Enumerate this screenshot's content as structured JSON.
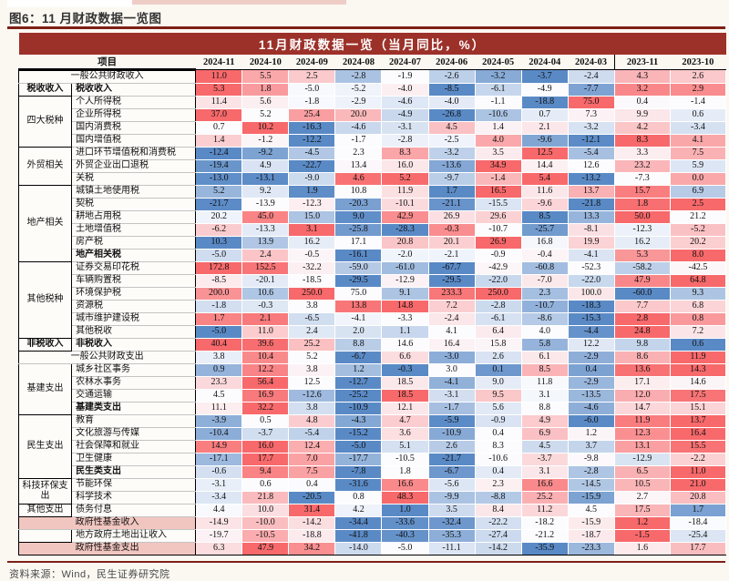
{
  "figure": {
    "title": "图6：11 月财政数据一览图"
  },
  "table": {
    "banner": "11月财政数据一览（当月同比，%）",
    "item_header": "项目"
  },
  "footer": {
    "source": "资料来源：Wind，民生证券研究院"
  },
  "colors": {
    "banner_bg": "#9C3129",
    "rule": "#7E2016",
    "pink_label_bg": "#F2C6C0",
    "scale_min": "#5A8AC6",
    "scale_mid": "#FCFCFF",
    "scale_max": "#F8696B"
  },
  "chart_data": {
    "type": "heatmap",
    "title": "11月财政数据一览（当月同比，%）",
    "legend_position": "none",
    "color_scale": {
      "min": "#5A8AC6",
      "mid": "#FCFCFF",
      "max": "#F8696B",
      "midpoint": "row-median"
    },
    "columns": [
      "2024-11",
      "2024-10",
      "2024-09",
      "2024-08",
      "2024-07",
      "2024-06",
      "2024-05",
      "2024-04",
      "2024-03",
      "2023-11",
      "2023-10"
    ],
    "rows": [
      {
        "m": 1,
        "l": "一般公共财政收入",
        "v": [
          11.0,
          5.5,
          2.5,
          -2.8,
          -1.9,
          -2.6,
          -3.2,
          -3.7,
          -2.4,
          4.3,
          2.6
        ]
      },
      {
        "sec": 1,
        "g": "税收收入",
        "gb": 1,
        "gs": 1,
        "l": "税收收入",
        "b": 1,
        "v": [
          5.3,
          1.8,
          -5.0,
          -5.2,
          -4.0,
          -8.5,
          -6.1,
          -4.9,
          -7.7,
          3.2,
          2.9
        ]
      },
      {
        "sec": 1,
        "g": "四大税种",
        "gs": 4,
        "l": "个人所得税",
        "v": [
          11.4,
          5.6,
          -1.8,
          -2.9,
          -4.6,
          -4.0,
          -1.1,
          -18.8,
          75.0,
          0.4,
          -1.4
        ]
      },
      {
        "l": "企业所得税",
        "v": [
          37.0,
          5.2,
          25.4,
          20.0,
          -4.9,
          -26.8,
          -10.6,
          0.7,
          7.3,
          9.9,
          0.6
        ]
      },
      {
        "l": "国内消费税",
        "v": [
          0.7,
          10.2,
          -16.3,
          -4.6,
          -3.1,
          4.5,
          1.4,
          2.1,
          -3.2,
          4.2,
          -3.4
        ]
      },
      {
        "l": "国内增值税",
        "v": [
          1.4,
          -1.2,
          -12.2,
          -1.7,
          -2.8,
          -2.5,
          4.0,
          -9.6,
          -12.1,
          8.3,
          4.1
        ]
      },
      {
        "sec": 1,
        "g": "外贸相关",
        "gs": 3,
        "l": "进口环节增值税和消费税",
        "v": [
          -12.4,
          -9.2,
          -4.5,
          2.3,
          8.3,
          -3.2,
          3.5,
          12.5,
          -5.4,
          3.3,
          7.5
        ]
      },
      {
        "l": "外贸企业出口退税",
        "v": [
          -19.4,
          4.9,
          -22.7,
          13.4,
          16.0,
          -13.6,
          34.9,
          14.4,
          12.6,
          23.2,
          5.9
        ]
      },
      {
        "l": "关税",
        "v": [
          -13.0,
          -13.1,
          -9.0,
          4.6,
          5.2,
          -9.7,
          -1.4,
          5.4,
          -13.2,
          -7.3,
          0.0
        ]
      },
      {
        "sec": 1,
        "g": "地产相关",
        "gs": 6,
        "l": "城镇土地使用税",
        "v": [
          5.2,
          9.2,
          1.9,
          10.8,
          11.9,
          1.7,
          16.5,
          11.6,
          13.7,
          15.7,
          6.9
        ]
      },
      {
        "l": "契税",
        "v": [
          -21.7,
          -13.9,
          -12.3,
          -20.3,
          -10.1,
          -21.1,
          -15.5,
          -9.6,
          -21.8,
          1.8,
          2.5
        ]
      },
      {
        "l": "耕地占用税",
        "v": [
          20.2,
          45.0,
          15.0,
          9.0,
          42.9,
          26.9,
          29.6,
          8.5,
          13.3,
          50.0,
          21.2
        ]
      },
      {
        "l": "土地增值税",
        "v": [
          -6.2,
          -13.3,
          3.1,
          -25.8,
          -28.3,
          -0.3,
          -10.7,
          -25.7,
          -8.1,
          -12.3,
          -5.2
        ]
      },
      {
        "l": "房产税",
        "v": [
          10.3,
          13.9,
          16.2,
          17.1,
          20.8,
          20.1,
          26.9,
          16.8,
          19.9,
          16.2,
          20.2
        ]
      },
      {
        "l": "地产相关税",
        "b": 1,
        "v": [
          -5.0,
          2.4,
          -0.5,
          -16.1,
          -2.0,
          -2.1,
          -0.9,
          -0.4,
          -4.1,
          5.3,
          8.0
        ]
      },
      {
        "sec": 1,
        "g": "其他税种",
        "gs": 6,
        "l": "证券交易印花税",
        "v": [
          172.8,
          152.5,
          -32.2,
          -59.0,
          -61.0,
          -67.7,
          -42.9,
          -60.8,
          -52.3,
          -58.2,
          -42.5
        ]
      },
      {
        "l": "车辆购置税",
        "v": [
          -8.5,
          -20.1,
          -18.5,
          -29.5,
          -12.9,
          -29.5,
          -22.0,
          -7.0,
          -22.0,
          47.9,
          64.8
        ]
      },
      {
        "l": "环境保护税",
        "v": [
          200.0,
          10.6,
          250.0,
          75.0,
          9.1,
          233.3,
          250.0,
          2.3,
          100.0,
          -60.0,
          9.3
        ]
      },
      {
        "l": "资源税",
        "v": [
          -1.8,
          -0.3,
          3.8,
          13.8,
          14.8,
          7.2,
          -2.8,
          -10.7,
          -18.3,
          7.7,
          6.8
        ]
      },
      {
        "l": "城市维护建设税",
        "v": [
          1.7,
          2.1,
          -6.5,
          -4.1,
          -3.3,
          -2.4,
          -6.1,
          -8.6,
          -15.3,
          2.8,
          0.8
        ]
      },
      {
        "l": "其他税收",
        "v": [
          -5.0,
          11.0,
          2.4,
          2.0,
          1.1,
          4.1,
          6.4,
          4.0,
          -4.4,
          24.8,
          7.2
        ]
      },
      {
        "sec": 1,
        "g": "非税收入",
        "gb": 1,
        "gs": 1,
        "l": "非税收入",
        "b": 1,
        "v": [
          40.4,
          39.6,
          25.2,
          8.8,
          14.6,
          16.4,
          15.8,
          5.8,
          12.2,
          9.8,
          0.6
        ]
      },
      {
        "sec": 1,
        "m": 1,
        "l": "一般公共财政支出",
        "v": [
          3.8,
          10.4,
          5.2,
          -6.7,
          6.6,
          -3.0,
          2.6,
          6.1,
          -2.9,
          8.6,
          11.9
        ]
      },
      {
        "sec": 1,
        "g": "基建支出",
        "gs": 4,
        "l": "城乡社区事务",
        "v": [
          0.9,
          12.2,
          3.8,
          1.2,
          -0.3,
          3.0,
          0.1,
          8.5,
          0.4,
          13.6,
          14.3
        ]
      },
      {
        "l": "农林水事务",
        "v": [
          23.3,
          56.4,
          12.5,
          -12.7,
          18.5,
          -4.1,
          9.0,
          11.8,
          -2.9,
          17.1,
          14.6
        ]
      },
      {
        "l": "交通运输",
        "v": [
          4.5,
          16.9,
          -12.6,
          -25.2,
          18.5,
          -3.1,
          9.5,
          3.1,
          -13.5,
          12.0,
          17.5
        ]
      },
      {
        "l": "基建类支出",
        "b": 1,
        "v": [
          11.1,
          32.2,
          3.8,
          -10.9,
          12.1,
          -1.7,
          5.6,
          8.8,
          -4.6,
          14.7,
          15.1
        ]
      },
      {
        "sec": 1,
        "g": "民生支出",
        "gs": 5,
        "l": "教育",
        "v": [
          -3.9,
          0.5,
          4.8,
          -4.3,
          4.7,
          -5.9,
          -0.9,
          4.9,
          -6.0,
          11.9,
          13.7
        ]
      },
      {
        "l": "文化旅游与传媒",
        "v": [
          -10.4,
          -3.7,
          -5.4,
          -15.2,
          3.6,
          -10.9,
          0.4,
          6.9,
          1.2,
          12.3,
          16.4
        ]
      },
      {
        "l": "社会保障和就业",
        "v": [
          14.9,
          16.0,
          12.4,
          -5.0,
          5.1,
          2.6,
          8.3,
          4.5,
          3.7,
          13.1,
          15.5
        ]
      },
      {
        "l": "卫生健康",
        "v": [
          -17.1,
          17.7,
          7.0,
          -17.7,
          -10.5,
          -21.7,
          -10.6,
          -3.7,
          -9.8,
          -12.9,
          -2.2
        ]
      },
      {
        "l": "民生类支出",
        "b": 1,
        "v": [
          -0.6,
          9.4,
          7.5,
          -7.8,
          1.8,
          -6.7,
          0.4,
          3.1,
          -2.8,
          6.5,
          11.0
        ]
      },
      {
        "sec": 1,
        "g": "科技环保支出",
        "gs": 2,
        "l": "节能环保",
        "v": [
          -3.1,
          0.6,
          0.4,
          -31.6,
          16.6,
          -5.6,
          2.3,
          16.6,
          -14.5,
          10.5,
          21.0
        ]
      },
      {
        "l": "科学技术",
        "v": [
          -3.4,
          21.8,
          -20.5,
          0.8,
          48.3,
          -9.9,
          -8.8,
          25.2,
          -15.9,
          2.7,
          20.8
        ]
      },
      {
        "sec": 1,
        "g": "其他支出",
        "gs": 1,
        "l": "债务付息",
        "v": [
          4.4,
          10.0,
          31.4,
          4.2,
          1.0,
          3.5,
          8.4,
          11.2,
          4.5,
          17.5,
          1.7
        ]
      },
      {
        "sec": 1,
        "m": 1,
        "hl": 1,
        "l": "政府性基金收入",
        "v": [
          -14.9,
          -10.0,
          -14.2,
          -34.4,
          -33.6,
          -32.4,
          -22.2,
          -18.2,
          -15.9,
          1.2,
          -18.4
        ]
      },
      {
        "sec": 1,
        "g": "",
        "gs": 1,
        "l": "地方政府土地出让收入",
        "v": [
          -19.7,
          -10.5,
          -18.8,
          -41.8,
          -40.3,
          -35.3,
          -27.4,
          -21.2,
          -18.7,
          -1.5,
          -25.4
        ]
      },
      {
        "sec": 1,
        "m": 1,
        "hl": 1,
        "l": "政府性基金支出",
        "v": [
          6.3,
          47.9,
          34.2,
          -14.0,
          -5.0,
          -11.1,
          -14.2,
          -35.9,
          -23.3,
          1.6,
          17.7
        ]
      }
    ]
  }
}
